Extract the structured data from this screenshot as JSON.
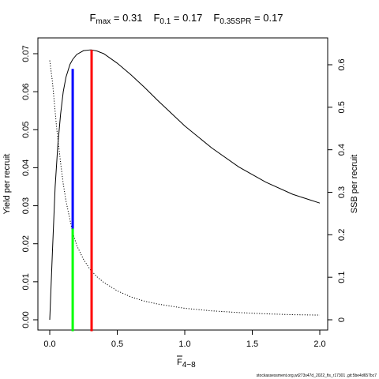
{
  "title": {
    "fmax_main": "F",
    "fmax_sub": "max",
    "fmax_value": " = 0.31",
    "f01_main": "F",
    "f01_sub": "0.1",
    "f01_value": " = 0.17",
    "fspr_main": "F",
    "fspr_sub": "0.35SPR",
    "fspr_value": " = 0.17"
  },
  "footer": "stockassessment.org,wt273s47d_2022_fis_r17301 ,git:5be4d657bc7",
  "chart_data": {
    "type": "line",
    "xlabel_main": "F",
    "xlabel_sub": "4−8",
    "ylabel_left": "Yield per recruit",
    "ylabel_right": "SSB per recruit",
    "xlim": [
      0,
      2.0
    ],
    "ylim_left": [
      0,
      0.07
    ],
    "ylim_right": [
      0,
      0.6
    ],
    "x_ticks": [
      0,
      0.5,
      1.0,
      1.5,
      2.0
    ],
    "x_tick_labels": [
      "0.0",
      "0.5",
      "1.0",
      "1.5",
      "2.0"
    ],
    "y_left_ticks": [
      0,
      0.01,
      0.02,
      0.03,
      0.04,
      0.05,
      0.06,
      0.07
    ],
    "y_left_tick_labels": [
      "0.00",
      "0.01",
      "0.02",
      "0.03",
      "0.04",
      "0.05",
      "0.06",
      "0.07"
    ],
    "y_right_ticks": [
      0,
      0.1,
      0.2,
      0.3,
      0.4,
      0.5,
      0.6
    ],
    "y_right_tick_labels": [
      "0",
      "0.1",
      "0.2",
      "0.3",
      "0.4",
      "0.5",
      "0.6"
    ],
    "series": [
      {
        "axis": "left",
        "style": "solid",
        "color": "#000000",
        "x": [
          0.0,
          0.02,
          0.04,
          0.06,
          0.08,
          0.1,
          0.12,
          0.15,
          0.17,
          0.2,
          0.25,
          0.3,
          0.31,
          0.35,
          0.4,
          0.5,
          0.6,
          0.7,
          0.8,
          1.0,
          1.2,
          1.4,
          1.6,
          1.8,
          2.0
        ],
        "y": [
          0.0,
          0.018,
          0.035,
          0.046,
          0.054,
          0.06,
          0.0638,
          0.0672,
          0.0685,
          0.0698,
          0.0708,
          0.071,
          0.071,
          0.0707,
          0.07,
          0.0675,
          0.0645,
          0.0612,
          0.0577,
          0.051,
          0.0452,
          0.0402,
          0.0362,
          0.033,
          0.0307
        ]
      },
      {
        "axis": "right",
        "style": "dotted",
        "color": "#000000",
        "x": [
          0.0,
          0.02,
          0.05,
          0.08,
          0.1,
          0.12,
          0.15,
          0.17,
          0.2,
          0.25,
          0.3,
          0.35,
          0.4,
          0.5,
          0.6,
          0.7,
          0.8,
          1.0,
          1.2,
          1.4,
          1.6,
          1.8,
          2.0
        ],
        "y": [
          0.61,
          0.56,
          0.455,
          0.37,
          0.32,
          0.28,
          0.235,
          0.205,
          0.175,
          0.142,
          0.118,
          0.101,
          0.088,
          0.068,
          0.054,
          0.044,
          0.037,
          0.027,
          0.021,
          0.017,
          0.014,
          0.012,
          0.011
        ]
      }
    ],
    "reference_lines": [
      {
        "name": "F0.1 yield",
        "color": "#0000ff",
        "x": 0.17,
        "axis": "left",
        "y_from": 0.024,
        "y_to": 0.066
      },
      {
        "name": "F0.1 / F0.35SPR",
        "color": "#00ff00",
        "x": 0.17,
        "axis": "left",
        "y_from": -0.003,
        "y_to": 0.024
      },
      {
        "name": "Fmax",
        "color": "#ff0000",
        "x": 0.31,
        "axis": "left",
        "y_from": -0.003,
        "y_to": 0.071
      }
    ]
  }
}
